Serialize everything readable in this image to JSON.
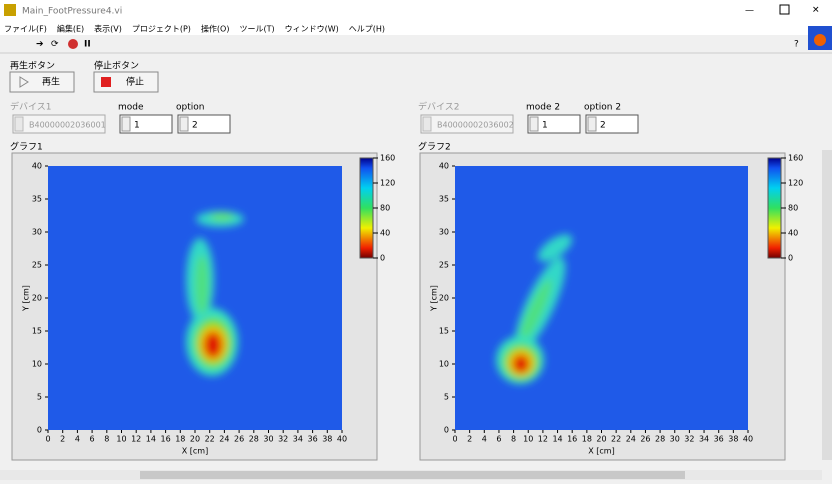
{
  "window": {
    "title": "Main_FootPressure4.vi"
  },
  "menu": [
    "ファイル(F)",
    "編集(E)",
    "表示(V)",
    "プロジェクト(P)",
    "操作(O)",
    "ツール(T)",
    "ウィンドウ(W)",
    "ヘルプ(H)"
  ],
  "controls": {
    "play": {
      "label": "再生ボタン",
      "text": "再生"
    },
    "stop": {
      "label": "停止ボタン",
      "text": "停止"
    }
  },
  "devices": [
    {
      "label": "デバイス1",
      "value": "B40000002036001",
      "mode_label": "mode",
      "mode": "1",
      "option_label": "option",
      "option": "2"
    },
    {
      "label": "デバイス2",
      "value": "B40000002036002",
      "mode_label": "mode 2",
      "mode": "1",
      "option_label": "option 2",
      "option": "2"
    }
  ],
  "graphs": [
    {
      "label": "グラフ1",
      "x_label": "X [cm]",
      "y_label": "Y [cm]",
      "xlim": [
        0,
        40
      ],
      "ylim": [
        0,
        40
      ],
      "xticks": [
        0,
        2,
        4,
        6,
        8,
        10,
        12,
        14,
        16,
        18,
        20,
        22,
        24,
        26,
        28,
        30,
        32,
        34,
        36,
        38,
        40
      ],
      "yticks": [
        0,
        5,
        10,
        15,
        20,
        25,
        30,
        35,
        40
      ],
      "colorbar_lim": [
        0,
        160
      ],
      "colorbar_ticks": [
        0,
        40,
        80,
        120,
        160
      ]
    },
    {
      "label": "グラフ2",
      "x_label": "X [cm]",
      "y_label": "Y [cm]",
      "xlim": [
        0,
        40
      ],
      "ylim": [
        0,
        40
      ],
      "xticks": [
        0,
        2,
        4,
        6,
        8,
        10,
        12,
        14,
        16,
        18,
        20,
        22,
        24,
        26,
        28,
        30,
        32,
        34,
        36,
        38,
        40
      ],
      "yticks": [
        0,
        5,
        10,
        15,
        20,
        25,
        30,
        35,
        40
      ],
      "colorbar_lim": [
        0,
        160
      ],
      "colorbar_ticks": [
        0,
        40,
        80,
        120,
        160
      ]
    }
  ]
}
